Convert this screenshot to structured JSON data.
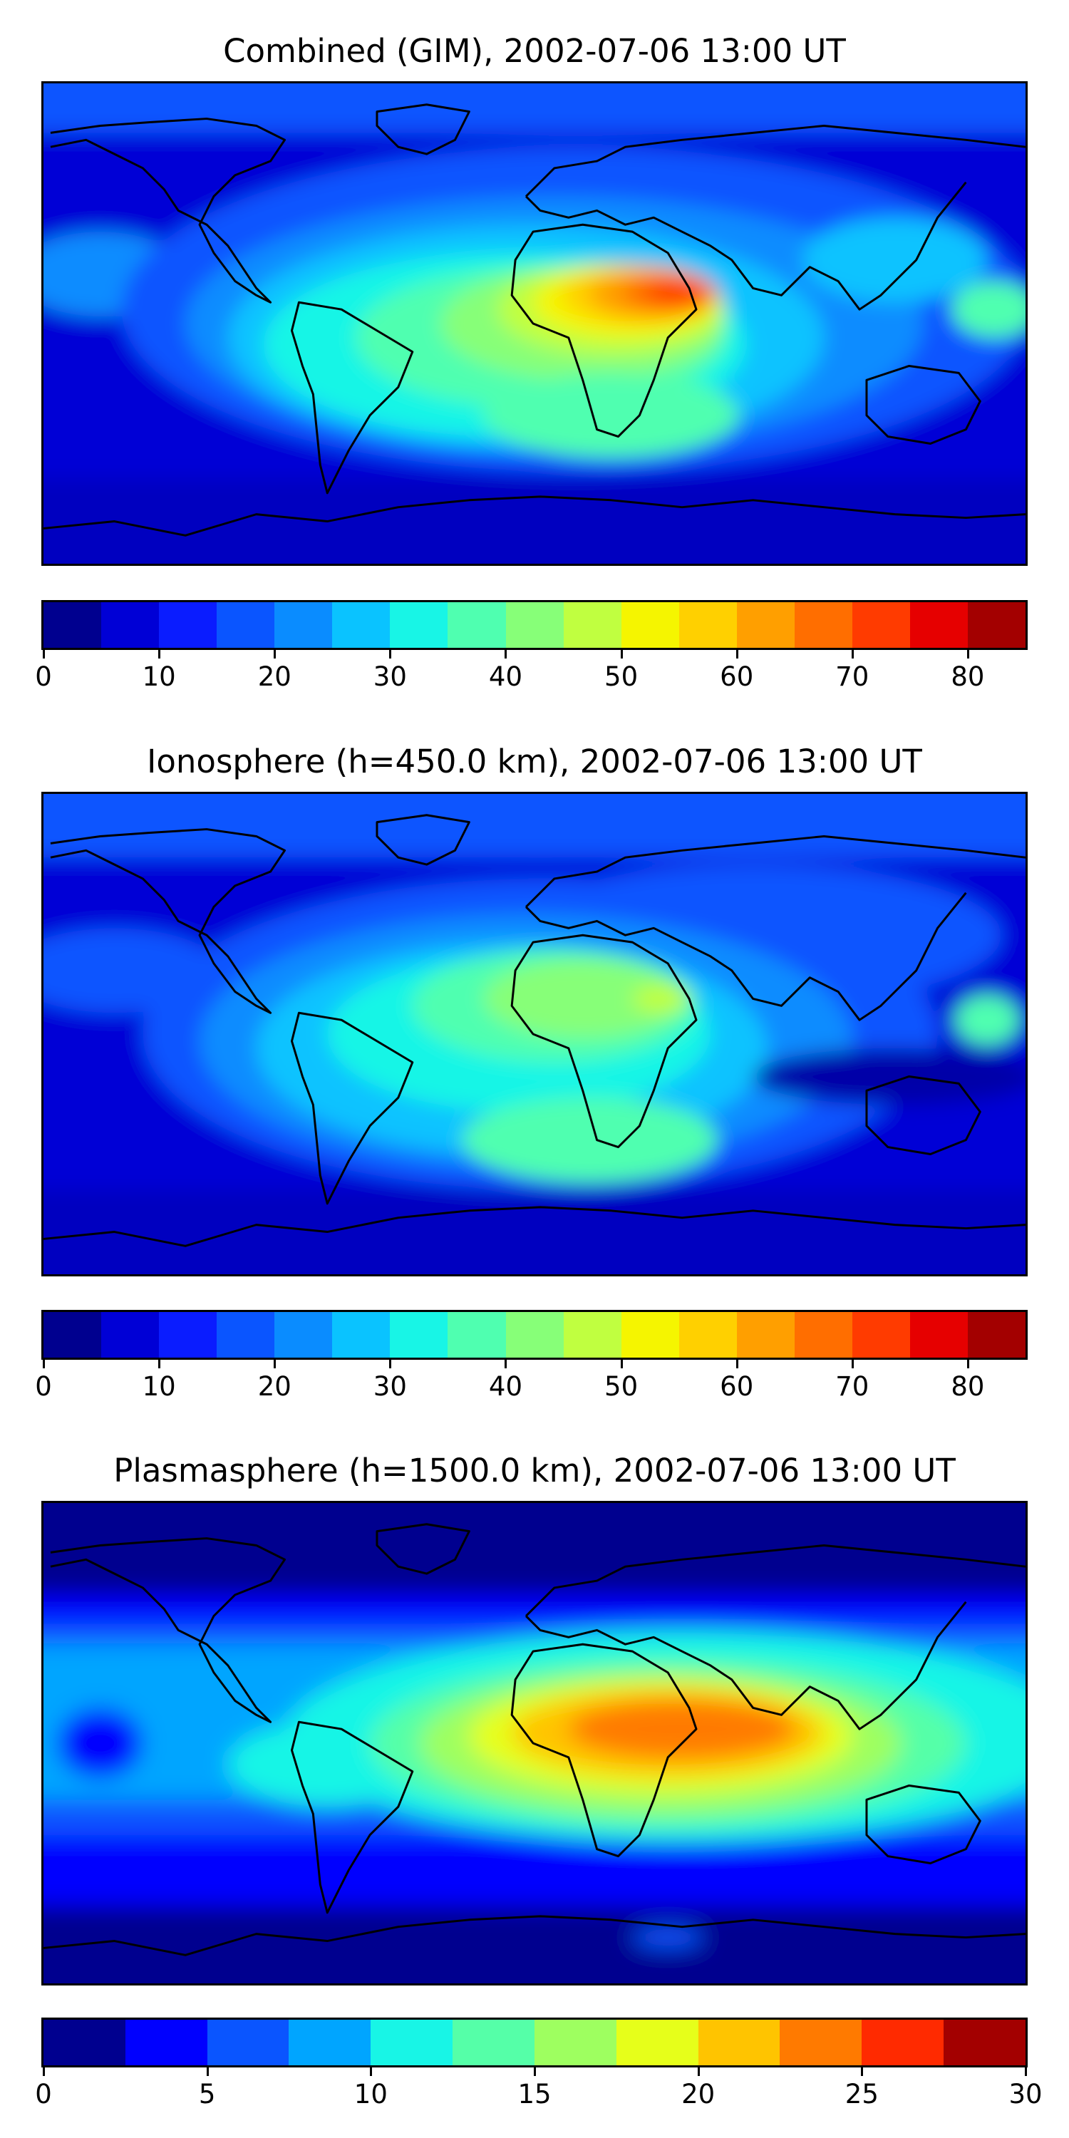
{
  "panels": [
    {
      "title": "Combined (GIM), 2002-07-06 13:00 UT",
      "colorbar": {
        "min": 0,
        "max": 85,
        "step": 5,
        "ticks": [
          "0",
          "10",
          "20",
          "30",
          "40",
          "50",
          "60",
          "70",
          "80"
        ],
        "tick_values": [
          0,
          10,
          20,
          30,
          40,
          50,
          60,
          70,
          80
        ],
        "colors": [
          "#00008f",
          "#0000d6",
          "#0a1cff",
          "#0a55ff",
          "#0a8cff",
          "#0ac3ff",
          "#18f5e6",
          "#4fffb0",
          "#87ff78",
          "#c0ff40",
          "#f5f500",
          "#ffd000",
          "#ff9f00",
          "#ff6e00",
          "#ff3b00",
          "#e60000",
          "#a30000"
        ]
      }
    },
    {
      "title": "Ionosphere  (h=450.0 km), 2002-07-06 13:00 UT",
      "colorbar": {
        "min": 0,
        "max": 85,
        "step": 5,
        "ticks": [
          "0",
          "10",
          "20",
          "30",
          "40",
          "50",
          "60",
          "70",
          "80"
        ],
        "tick_values": [
          0,
          10,
          20,
          30,
          40,
          50,
          60,
          70,
          80
        ],
        "colors": [
          "#00008f",
          "#0000d6",
          "#0a1cff",
          "#0a55ff",
          "#0a8cff",
          "#0ac3ff",
          "#18f5e6",
          "#4fffb0",
          "#87ff78",
          "#c0ff40",
          "#f5f500",
          "#ffd000",
          "#ff9f00",
          "#ff6e00",
          "#ff3b00",
          "#e60000",
          "#a30000"
        ]
      }
    },
    {
      "title": "Plasmasphere (h=1500.0 km), 2002-07-06 13:00 UT",
      "colorbar": {
        "min": 0,
        "max": 30,
        "step": 2.5,
        "ticks": [
          "0",
          "5",
          "10",
          "15",
          "20",
          "25",
          "30"
        ],
        "tick_values": [
          0,
          5,
          10,
          15,
          20,
          25,
          30
        ],
        "colors": [
          "#00008f",
          "#0000ff",
          "#0a55ff",
          "#00a5ff",
          "#18f5e6",
          "#55ffa8",
          "#9eff60",
          "#e6ff1a",
          "#ffc400",
          "#ff7a00",
          "#ff2a00",
          "#a30000"
        ]
      }
    }
  ]
}
